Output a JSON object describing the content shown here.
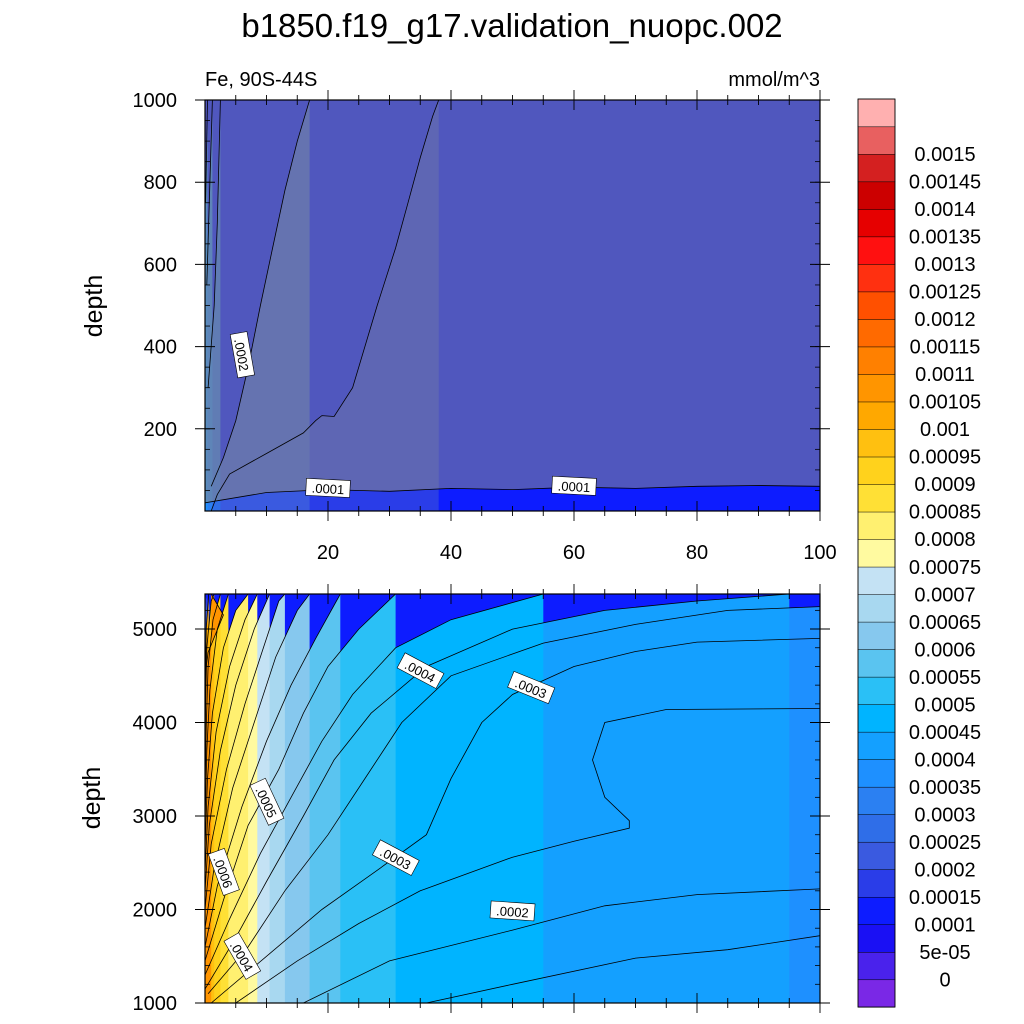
{
  "title": "b1850.f19_g17.validation_nuopc.002",
  "colors": {
    "background": "#ffffff",
    "deep_blue": "#1a0ff0",
    "contour_line": "#000000"
  },
  "chart_data": [
    {
      "type": "contour",
      "panel": "upper",
      "left_string": "Fe, 90S-44S",
      "right_string": "mmol/m^3",
      "xlabel": "",
      "ylabel": "depth",
      "xlim": [
        0,
        100
      ],
      "ylim": [
        1000,
        0
      ],
      "x_ticks": [
        20,
        40,
        60,
        80,
        100
      ],
      "y_ticks": [
        200,
        400,
        600,
        800,
        1000
      ],
      "contour_labels": [
        {
          "text": ".0001",
          "x": 20,
          "y": 55,
          "angle": 3
        },
        {
          "text": ".0001",
          "x": 60,
          "y": 60,
          "angle": 3
        },
        {
          "text": ".0002",
          "x": 6,
          "y": 380,
          "angle": 80
        }
      ],
      "levels": [
        {
          "level": 0.00015,
          "boundary": [
            [
              1,
              0
            ],
            [
              2,
              40
            ],
            [
              4,
              90
            ],
            [
              10,
              140
            ],
            [
              16,
              190
            ],
            [
              18,
              220
            ],
            [
              19,
              232
            ],
            [
              21,
              230
            ],
            [
              24,
              300
            ],
            [
              28,
              500
            ],
            [
              31,
              640
            ],
            [
              33,
              750
            ],
            [
              35,
              860
            ],
            [
              37,
              960
            ],
            [
              38,
              1000
            ]
          ]
        },
        {
          "level": 0.0002,
          "boundary": [
            [
              1,
              60
            ],
            [
              3,
              130
            ],
            [
              5,
              220
            ],
            [
              7,
              350
            ],
            [
              9,
              500
            ],
            [
              11,
              640
            ],
            [
              13,
              780
            ],
            [
              15,
              900
            ],
            [
              17,
              1000
            ]
          ]
        },
        {
          "level": 0.00025,
          "boundary": [
            [
              0.5,
              300
            ],
            [
              1.5,
              500
            ],
            [
              2,
              700
            ],
            [
              2.5,
              1000
            ]
          ]
        },
        {
          "level": 0.0003,
          "boundary": [
            [
              0.3,
              550
            ],
            [
              0.8,
              800
            ],
            [
              1.2,
              1000
            ]
          ]
        },
        {
          "level": 0.00035,
          "boundary": [
            [
              0.1,
              750
            ],
            [
              0.4,
              1000
            ]
          ]
        }
      ]
    },
    {
      "type": "contour",
      "panel": "lower",
      "xlabel": "",
      "ylabel": "depth",
      "xlim": [
        0,
        100
      ],
      "ylim": [
        5375,
        1000
      ],
      "y_ticks": [
        1000,
        2000,
        3000,
        4000,
        5000
      ],
      "contour_labels": [
        {
          "text": ".0004",
          "x": 6,
          "y": 1500,
          "angle": 60
        },
        {
          "text": ".0006",
          "x": 3,
          "y": 2400,
          "angle": 70
        },
        {
          "text": ".0005",
          "x": 10,
          "y": 3150,
          "angle": 65
        },
        {
          "text": ".0003",
          "x": 31,
          "y": 2550,
          "angle": 28
        },
        {
          "text": ".0002",
          "x": 50,
          "y": 1980,
          "angle": 4
        },
        {
          "text": ".0004",
          "x": 35,
          "y": 4550,
          "angle": 28
        },
        {
          "text": ".0003",
          "x": 53,
          "y": 4370,
          "angle": 22
        }
      ],
      "levels": [
        {
          "level": 0.00015,
          "boundary": [
            [
              36,
              1000
            ],
            [
              50,
              1200
            ],
            [
              70,
              1480
            ],
            [
              85,
              1570
            ],
            [
              100,
              1720
            ]
          ]
        },
        {
          "level": 0.0002,
          "boundary": [
            [
              16,
              1000
            ],
            [
              30,
              1450
            ],
            [
              50,
              1780
            ],
            [
              65,
              2040
            ],
            [
              80,
              2160
            ],
            [
              100,
              2220
            ]
          ]
        },
        {
          "level": 0.00025,
          "boundary": [
            [
              5,
              1000
            ],
            [
              15,
              1450
            ],
            [
              25,
              1850
            ],
            [
              35,
              2200
            ],
            [
              50,
              2560
            ],
            [
              60,
              2730
            ],
            [
              69,
              2870
            ],
            [
              69,
              2950
            ],
            [
              65,
              3200
            ],
            [
              63,
              3600
            ],
            [
              65,
              4000
            ],
            [
              75,
              4140
            ],
            [
              100,
              4150
            ]
          ]
        },
        {
          "level": 0.0003,
          "boundary": [
            [
              1,
              1000
            ],
            [
              10,
              1500
            ],
            [
              19,
              2000
            ],
            [
              28,
              2420
            ],
            [
              36,
              2800
            ],
            [
              40,
              3400
            ],
            [
              45,
              4000
            ],
            [
              50,
              4300
            ],
            [
              60,
              4600
            ],
            [
              70,
              4760
            ],
            [
              80,
              4860
            ],
            [
              100,
              4900
            ]
          ]
        },
        {
          "level": 0.00035,
          "boundary": [
            [
              0.5,
              1100
            ],
            [
              7,
              1600
            ],
            [
              13,
              2200
            ],
            [
              20,
              2800
            ],
            [
              26,
              3400
            ],
            [
              32,
              4000
            ],
            [
              40,
              4500
            ],
            [
              55,
              4850
            ],
            [
              70,
              5050
            ],
            [
              85,
              5200
            ],
            [
              100,
              5240
            ]
          ]
        },
        {
          "level": 0.0004,
          "boundary": [
            [
              0,
              1150
            ],
            [
              5,
              1700
            ],
            [
              10,
              2300
            ],
            [
              16,
              3000
            ],
            [
              21,
              3600
            ],
            [
              27,
              4100
            ],
            [
              36,
              4600
            ],
            [
              50,
              5000
            ],
            [
              65,
              5200
            ],
            [
              80,
              5300
            ],
            [
              95,
              5375
            ]
          ]
        },
        {
          "level": 0.00045,
          "boundary": [
            [
              0,
              1300
            ],
            [
              4,
              1900
            ],
            [
              9,
              2600
            ],
            [
              14,
              3200
            ],
            [
              19,
              3800
            ],
            [
              24,
              4300
            ],
            [
              31,
              4800
            ],
            [
              40,
              5100
            ],
            [
              55,
              5375
            ]
          ]
        },
        {
          "level": 0.0005,
          "boundary": [
            [
              0,
              1450
            ],
            [
              3,
              2100
            ],
            [
              7,
              2900
            ],
            [
              12,
              3500
            ],
            [
              16,
              4100
            ],
            [
              20,
              4600
            ],
            [
              25,
              5000
            ],
            [
              31,
              5375
            ]
          ]
        },
        {
          "level": 0.00055,
          "boundary": [
            [
              0,
              1600
            ],
            [
              2,
              2250
            ],
            [
              6,
              3100
            ],
            [
              10,
              3800
            ],
            [
              14,
              4400
            ],
            [
              18,
              4900
            ],
            [
              22,
              5375
            ]
          ]
        },
        {
          "level": 0.0006,
          "boundary": [
            [
              0,
              1800
            ],
            [
              1.5,
              2450
            ],
            [
              4.5,
              3300
            ],
            [
              8,
              4000
            ],
            [
              11.5,
              4700
            ],
            [
              15,
              5200
            ],
            [
              17,
              5375
            ]
          ]
        },
        {
          "level": 0.00065,
          "boundary": [
            [
              0,
              2000
            ],
            [
              1,
              2700
            ],
            [
              3.5,
              3500
            ],
            [
              6.5,
              4200
            ],
            [
              9.5,
              4800
            ],
            [
              12,
              5300
            ],
            [
              13,
              5375
            ]
          ]
        },
        {
          "level": 0.0007,
          "boundary": [
            [
              0,
              2200
            ],
            [
              0.7,
              2900
            ],
            [
              2.5,
              3700
            ],
            [
              5,
              4400
            ],
            [
              8,
              5000
            ],
            [
              10.5,
              5375
            ]
          ]
        },
        {
          "level": 0.00075,
          "boundary": [
            [
              0,
              2400
            ],
            [
              0.5,
              3100
            ],
            [
              1.8,
              3900
            ],
            [
              4,
              4600
            ],
            [
              6.5,
              5100
            ],
            [
              8.5,
              5375
            ]
          ]
        },
        {
          "level": 0.0008,
          "boundary": [
            [
              0,
              2650
            ],
            [
              0.4,
              3400
            ],
            [
              1.2,
              4100
            ],
            [
              3,
              4800
            ],
            [
              5,
              5200
            ],
            [
              7,
              5375
            ]
          ]
        },
        {
          "level": 0.00085,
          "boundary": [
            [
              0,
              2900
            ],
            [
              0.3,
              3700
            ],
            [
              0.8,
              4350
            ],
            [
              2,
              5000
            ],
            [
              3.8,
              5375
            ]
          ]
        },
        {
          "level": 0.0009,
          "boundary": [
            [
              0,
              3200
            ],
            [
              0.2,
              3950
            ],
            [
              0.5,
              4600
            ],
            [
              1.3,
              5100
            ],
            [
              2.5,
              5375
            ]
          ]
        },
        {
          "level": 0.00095,
          "boundary": [
            [
              0,
              3500
            ],
            [
              0.1,
              4200
            ],
            [
              0.3,
              4800
            ],
            [
              1,
              5300
            ],
            [
              1.5,
              5375
            ]
          ]
        },
        {
          "level": 0.001,
          "boundary": [
            [
              0,
              3900
            ],
            [
              0.1,
              4500
            ],
            [
              0.2,
              5000
            ],
            [
              0.6,
              5375
            ]
          ]
        },
        {
          "level": 0.00105,
          "boundary": [
            [
              0,
              4500
            ],
            [
              0.5,
              4750
            ],
            [
              3,
              5150
            ],
            [
              1,
              5375
            ]
          ]
        }
      ]
    }
  ],
  "colorbar": {
    "levels": [
      "0",
      "5e-05",
      "0.0001",
      "0.00015",
      "0.0002",
      "0.00025",
      "0.0003",
      "0.00035",
      "0.0004",
      "0.00045",
      "0.0005",
      "0.00055",
      "0.0006",
      "0.00065",
      "0.0007",
      "0.00075",
      "0.0008",
      "0.00085",
      "0.0009",
      "0.00095",
      "0.001",
      "0.00105",
      "0.0011",
      "0.00115",
      "0.0012",
      "0.00125",
      "0.0013",
      "0.00135",
      "0.0014",
      "0.00145",
      "0.0015"
    ],
    "colors": [
      "#7a28e6",
      "#4a22ec",
      "#1a10f4",
      "#0d1cff",
      "#2a3de8",
      "#3a5ae0",
      "#2f6ee8",
      "#2b80f2",
      "#1e90ff",
      "#14a0ff",
      "#00b4ff",
      "#2ac0f6",
      "#5ac4f0",
      "#86c8ee",
      "#a8d8f0",
      "#c4e2f4",
      "#fffaa0",
      "#fff070",
      "#ffe035",
      "#ffd21c",
      "#ffc010",
      "#ffa800",
      "#ff9500",
      "#ff8000",
      "#ff6a00",
      "#ff5000",
      "#ff3010",
      "#ff1010",
      "#e60000",
      "#cc0000",
      "#d42020",
      "#e86060",
      "#ffb0b0"
    ]
  }
}
